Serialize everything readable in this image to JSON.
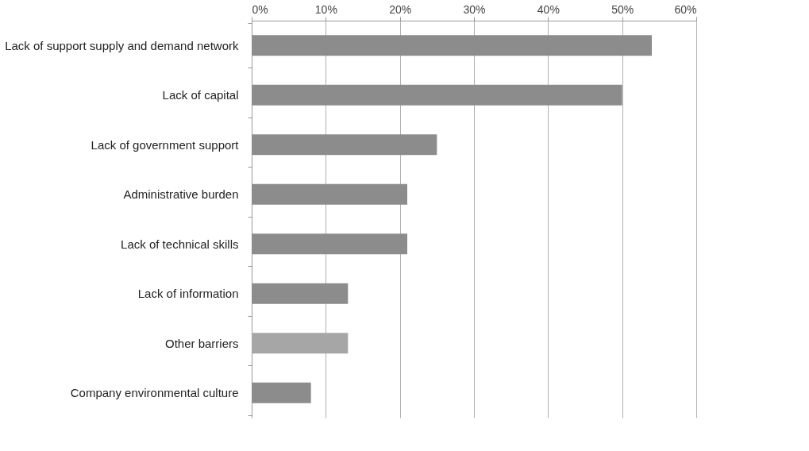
{
  "chart_data": {
    "type": "bar",
    "orientation": "horizontal",
    "categories": [
      "Lack of support supply and demand network",
      "Lack of capital",
      "Lack of government support",
      "Administrative burden",
      "Lack of technical skills",
      "Lack of information",
      "Other barriers",
      "Company environmental culture"
    ],
    "values": [
      54,
      50,
      25,
      21,
      21,
      13,
      13,
      8
    ],
    "colors": [
      "#8c8c8c",
      "#8c8c8c",
      "#8c8c8c",
      "#8c8c8c",
      "#8c8c8c",
      "#8c8c8c",
      "#a6a6a6",
      "#8c8c8c"
    ],
    "xlim": [
      0,
      60
    ],
    "xticks": [
      {
        "value": 0,
        "label": "0%"
      },
      {
        "value": 10,
        "label": "10%"
      },
      {
        "value": 20,
        "label": "20%"
      },
      {
        "value": 30,
        "label": "30%"
      },
      {
        "value": 40,
        "label": "40%"
      },
      {
        "value": 50,
        "label": "50%"
      },
      {
        "value": 60,
        "label": "60%"
      }
    ],
    "grid": "x"
  }
}
